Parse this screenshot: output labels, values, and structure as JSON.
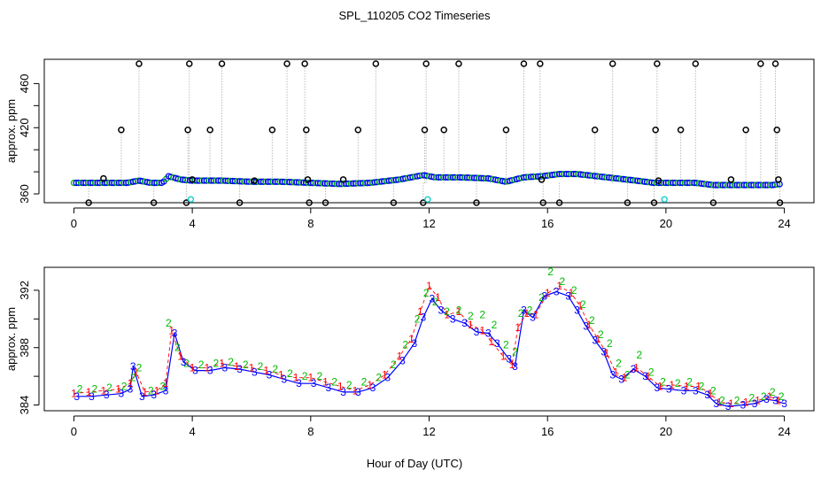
{
  "figure": {
    "title": "SPL_110205  CO2 Timeseries",
    "xlabel": "Hour of Day (UTC)"
  },
  "colors": {
    "trace": "#999999",
    "outlier": "#000000",
    "flag": "#00cccc",
    "series1": "#ff0000",
    "series2": "#00bb00",
    "series3": "#0000ff",
    "connector": "#0000ff"
  },
  "chart_data": [
    {
      "id": "top",
      "type": "scatter",
      "title": "",
      "ylabel": "approx. ppm",
      "xlim": [
        -1,
        25
      ],
      "ylim": [
        352,
        482
      ],
      "xticks": [
        0,
        4,
        8,
        12,
        16,
        20,
        24
      ],
      "yticks": [
        360,
        380,
        400,
        420,
        440,
        460
      ],
      "ytick_labels": [
        "360",
        "",
        "",
        "420",
        "",
        "460"
      ],
      "baseline": [
        [
          0,
          370
        ],
        [
          1,
          370
        ],
        [
          1.8,
          370
        ],
        [
          2.2,
          372
        ],
        [
          2.6,
          370
        ],
        [
          3.0,
          370
        ],
        [
          3.2,
          376
        ],
        [
          3.6,
          373
        ],
        [
          4,
          372
        ],
        [
          5,
          372
        ],
        [
          6,
          371
        ],
        [
          7,
          371
        ],
        [
          8,
          370
        ],
        [
          9,
          369
        ],
        [
          10,
          370
        ],
        [
          11,
          373
        ],
        [
          11.8,
          377
        ],
        [
          12.2,
          375
        ],
        [
          13,
          375
        ],
        [
          14,
          374
        ],
        [
          14.6,
          371
        ],
        [
          15.2,
          375
        ],
        [
          15.8,
          376
        ],
        [
          16.4,
          378
        ],
        [
          17,
          378
        ],
        [
          18,
          375
        ],
        [
          19,
          372
        ],
        [
          19.6,
          370
        ],
        [
          20,
          370
        ],
        [
          21,
          370
        ],
        [
          21.6,
          368
        ],
        [
          22,
          368
        ],
        [
          23,
          368
        ],
        [
          23.6,
          368
        ],
        [
          23.9,
          369
        ]
      ],
      "outliers": [
        [
          0.5,
          352
        ],
        [
          1.0,
          374
        ],
        [
          1.6,
          418
        ],
        [
          2.2,
          478
        ],
        [
          2.7,
          352
        ],
        [
          3.8,
          352
        ],
        [
          3.85,
          418
        ],
        [
          3.9,
          478
        ],
        [
          4.0,
          373
        ],
        [
          4.6,
          418
        ],
        [
          5.0,
          478
        ],
        [
          5.6,
          352
        ],
        [
          6.1,
          372
        ],
        [
          6.7,
          418
        ],
        [
          7.2,
          478
        ],
        [
          7.8,
          478
        ],
        [
          7.85,
          418
        ],
        [
          7.9,
          373
        ],
        [
          7.95,
          352
        ],
        [
          8.5,
          352
        ],
        [
          9.1,
          373
        ],
        [
          9.6,
          418
        ],
        [
          10.2,
          478
        ],
        [
          10.8,
          352
        ],
        [
          11.8,
          352
        ],
        [
          11.85,
          418
        ],
        [
          11.9,
          478
        ],
        [
          12.5,
          418
        ],
        [
          13.0,
          478
        ],
        [
          13.6,
          352
        ],
        [
          14.6,
          418
        ],
        [
          15.2,
          478
        ],
        [
          15.75,
          478
        ],
        [
          15.8,
          373
        ],
        [
          15.85,
          352
        ],
        [
          16.4,
          352
        ],
        [
          17.6,
          418
        ],
        [
          18.2,
          478
        ],
        [
          18.7,
          352
        ],
        [
          19.6,
          352
        ],
        [
          19.65,
          418
        ],
        [
          19.7,
          478
        ],
        [
          19.75,
          372
        ],
        [
          20.5,
          418
        ],
        [
          21.0,
          478
        ],
        [
          21.6,
          352
        ],
        [
          22.2,
          373
        ],
        [
          22.7,
          418
        ],
        [
          23.2,
          478
        ],
        [
          23.7,
          478
        ],
        [
          23.75,
          418
        ],
        [
          23.8,
          373
        ],
        [
          23.85,
          352
        ]
      ],
      "flagged": [
        [
          3.95,
          355
        ],
        [
          11.95,
          355
        ],
        [
          19.95,
          355
        ]
      ]
    },
    {
      "id": "bottom",
      "type": "line",
      "title": "",
      "ylabel": "approx. ppm",
      "xlim": [
        -1,
        25
      ],
      "ylim": [
        383.6,
        393.6
      ],
      "xticks": [
        0,
        4,
        8,
        12,
        16,
        20,
        24
      ],
      "yticks": [
        384,
        386,
        388,
        390,
        392
      ],
      "ytick_labels": [
        "384",
        "",
        "388",
        "",
        "392"
      ],
      "series_labels": [
        "1",
        "2",
        "3"
      ],
      "series": [
        {
          "name": "1",
          "points": [
            [
              0.0,
              384.8
            ],
            [
              0.5,
              384.9
            ],
            [
              1.0,
              385.0
            ],
            [
              1.5,
              385.1
            ],
            [
              1.9,
              385.5
            ],
            [
              2.1,
              386.3
            ],
            [
              2.4,
              384.9
            ],
            [
              2.8,
              385.0
            ],
            [
              3.1,
              385.5
            ],
            [
              3.3,
              389.2
            ],
            [
              3.6,
              387.4
            ],
            [
              4.0,
              386.6
            ],
            [
              4.5,
              386.6
            ],
            [
              5.0,
              386.9
            ],
            [
              5.5,
              386.7
            ],
            [
              6.0,
              386.6
            ],
            [
              6.5,
              386.4
            ],
            [
              7.0,
              386.1
            ],
            [
              7.5,
              385.9
            ],
            [
              8.0,
              385.9
            ],
            [
              8.5,
              385.6
            ],
            [
              9.0,
              385.3
            ],
            [
              9.5,
              385.0
            ],
            [
              10.0,
              385.4
            ],
            [
              10.5,
              386.1
            ],
            [
              11.0,
              387.4
            ],
            [
              11.4,
              388.6
            ],
            [
              11.7,
              390.5
            ],
            [
              12.0,
              392.3
            ],
            [
              12.3,
              391.5
            ],
            [
              12.6,
              390.3
            ],
            [
              13.0,
              390.5
            ],
            [
              13.4,
              389.6
            ],
            [
              13.8,
              389.2
            ],
            [
              14.1,
              388.4
            ],
            [
              14.5,
              387.4
            ],
            [
              14.8,
              386.8
            ],
            [
              15.0,
              389.4
            ],
            [
              15.3,
              390.4
            ],
            [
              15.6,
              390.3
            ],
            [
              16.0,
              391.8
            ],
            [
              16.4,
              392.3
            ],
            [
              16.8,
              391.8
            ],
            [
              17.1,
              390.9
            ],
            [
              17.4,
              389.6
            ],
            [
              17.7,
              388.6
            ],
            [
              18.0,
              387.6
            ],
            [
              18.3,
              386.3
            ],
            [
              18.6,
              385.9
            ],
            [
              19.0,
              386.6
            ],
            [
              19.4,
              386.0
            ],
            [
              19.8,
              385.3
            ],
            [
              20.2,
              385.4
            ],
            [
              20.7,
              385.3
            ],
            [
              21.1,
              385.3
            ],
            [
              21.5,
              384.8
            ],
            [
              21.8,
              384.2
            ],
            [
              22.2,
              384.1
            ],
            [
              22.7,
              384.2
            ],
            [
              23.1,
              384.3
            ],
            [
              23.5,
              384.6
            ],
            [
              23.8,
              384.3
            ]
          ]
        },
        {
          "name": "2",
          "points": [
            [
              0.2,
              385.1
            ],
            [
              0.7,
              385.1
            ],
            [
              1.2,
              385.2
            ],
            [
              1.7,
              385.3
            ],
            [
              2.0,
              385.9
            ],
            [
              2.2,
              386.6
            ],
            [
              2.6,
              385.0
            ],
            [
              3.0,
              385.3
            ],
            [
              3.2,
              389.7
            ],
            [
              3.5,
              388.0
            ],
            [
              3.8,
              386.9
            ],
            [
              4.3,
              386.8
            ],
            [
              4.8,
              386.9
            ],
            [
              5.3,
              387.0
            ],
            [
              5.8,
              386.8
            ],
            [
              6.3,
              386.7
            ],
            [
              6.8,
              386.5
            ],
            [
              7.3,
              386.2
            ],
            [
              7.8,
              386.0
            ],
            [
              8.3,
              386.0
            ],
            [
              8.8,
              385.6
            ],
            [
              9.3,
              385.4
            ],
            [
              9.8,
              385.6
            ],
            [
              10.3,
              385.9
            ],
            [
              10.8,
              386.8
            ],
            [
              11.2,
              388.2
            ],
            [
              11.6,
              390.0
            ],
            [
              11.9,
              391.8
            ],
            [
              12.2,
              391.2
            ],
            [
              12.6,
              390.5
            ],
            [
              13.0,
              390.6
            ],
            [
              13.4,
              390.2
            ],
            [
              13.8,
              390.3
            ],
            [
              14.2,
              389.6
            ],
            [
              14.6,
              388.2
            ],
            [
              14.9,
              387.7
            ],
            [
              15.1,
              390.4
            ],
            [
              15.4,
              390.6
            ],
            [
              15.8,
              391.5
            ],
            [
              16.1,
              393.3
            ],
            [
              16.5,
              392.6
            ],
            [
              16.9,
              392.0
            ],
            [
              17.2,
              391.0
            ],
            [
              17.5,
              389.9
            ],
            [
              17.8,
              388.9
            ],
            [
              18.1,
              388.3
            ],
            [
              18.4,
              386.9
            ],
            [
              18.7,
              386.1
            ],
            [
              19.1,
              387.5
            ],
            [
              19.5,
              386.3
            ],
            [
              19.9,
              385.6
            ],
            [
              20.4,
              385.5
            ],
            [
              20.8,
              385.6
            ],
            [
              21.2,
              385.3
            ],
            [
              21.6,
              385.0
            ],
            [
              21.9,
              384.3
            ],
            [
              22.4,
              384.3
            ],
            [
              22.9,
              384.5
            ],
            [
              23.3,
              384.6
            ],
            [
              23.6,
              384.9
            ],
            [
              23.9,
              384.6
            ]
          ]
        },
        {
          "name": "3",
          "points": [
            [
              0.1,
              384.6
            ],
            [
              0.6,
              384.6
            ],
            [
              1.1,
              384.7
            ],
            [
              1.6,
              384.8
            ],
            [
              1.9,
              385.1
            ],
            [
              2.0,
              386.7
            ],
            [
              2.3,
              384.6
            ],
            [
              2.7,
              384.7
            ],
            [
              3.1,
              385.0
            ],
            [
              3.4,
              389.0
            ],
            [
              3.7,
              387.0
            ],
            [
              4.1,
              386.4
            ],
            [
              4.6,
              386.4
            ],
            [
              5.1,
              386.6
            ],
            [
              5.6,
              386.5
            ],
            [
              6.1,
              386.3
            ],
            [
              6.6,
              386.1
            ],
            [
              7.1,
              385.8
            ],
            [
              7.6,
              385.5
            ],
            [
              8.1,
              385.5
            ],
            [
              8.6,
              385.2
            ],
            [
              9.1,
              384.9
            ],
            [
              9.6,
              384.9
            ],
            [
              10.1,
              385.2
            ],
            [
              10.6,
              385.9
            ],
            [
              11.1,
              387.1
            ],
            [
              11.5,
              388.3
            ],
            [
              11.8,
              390.1
            ],
            [
              12.1,
              391.4
            ],
            [
              12.4,
              390.6
            ],
            [
              12.8,
              390.0
            ],
            [
              13.2,
              389.7
            ],
            [
              13.6,
              389.1
            ],
            [
              14.0,
              389.0
            ],
            [
              14.3,
              388.3
            ],
            [
              14.7,
              387.2
            ],
            [
              14.9,
              386.7
            ],
            [
              15.2,
              390.6
            ],
            [
              15.5,
              390.1
            ],
            [
              15.9,
              391.6
            ],
            [
              16.3,
              391.9
            ],
            [
              16.7,
              391.6
            ],
            [
              17.0,
              390.6
            ],
            [
              17.3,
              389.5
            ],
            [
              17.6,
              388.5
            ],
            [
              17.9,
              387.7
            ],
            [
              18.2,
              386.1
            ],
            [
              18.5,
              385.8
            ],
            [
              18.9,
              386.5
            ],
            [
              19.3,
              386.0
            ],
            [
              19.7,
              385.2
            ],
            [
              20.1,
              385.1
            ],
            [
              20.6,
              385.0
            ],
            [
              21.0,
              385.0
            ],
            [
              21.4,
              384.7
            ],
            [
              21.7,
              384.1
            ],
            [
              22.1,
              383.9
            ],
            [
              22.6,
              384.0
            ],
            [
              23.0,
              384.1
            ],
            [
              23.4,
              384.4
            ],
            [
              23.7,
              384.3
            ],
            [
              24.0,
              384.1
            ]
          ]
        }
      ]
    }
  ]
}
